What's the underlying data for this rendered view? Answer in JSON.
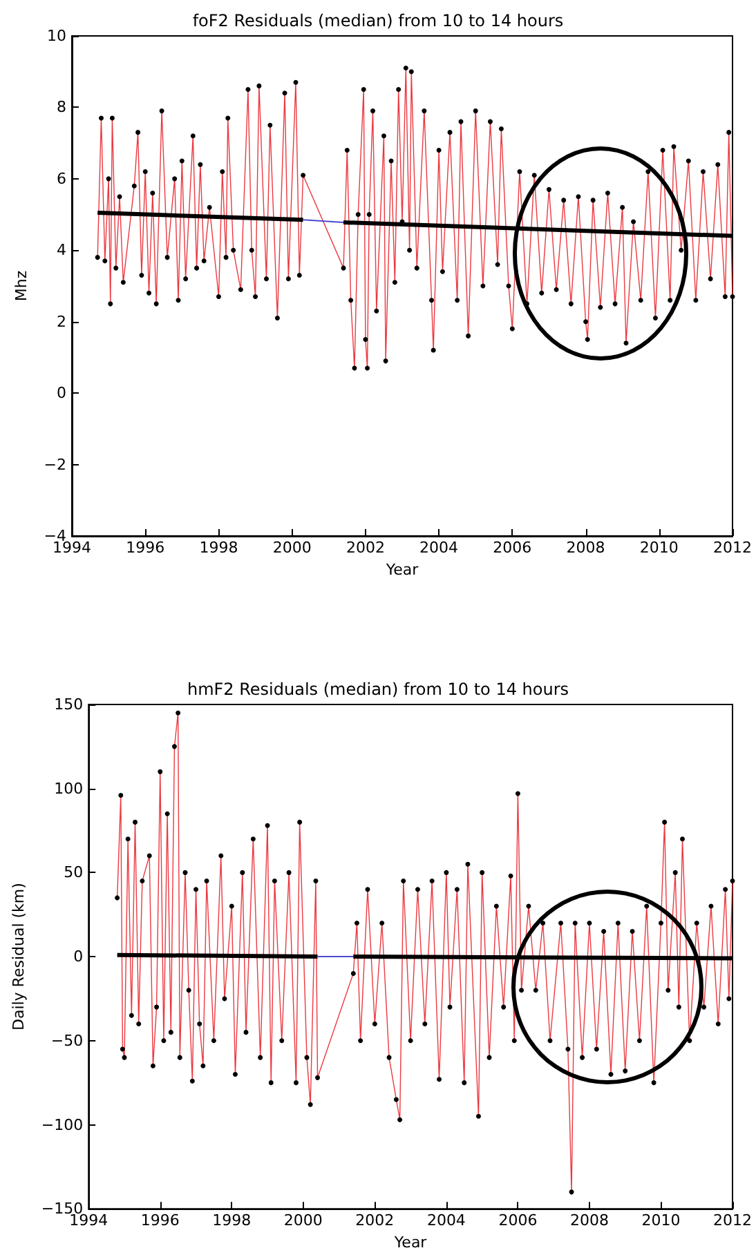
{
  "chart_data": [
    {
      "type": "line",
      "title": "foF2 Residuals (median) from 10 to 14 hours",
      "xlabel": "Year",
      "ylabel": "Mhz",
      "xlim": [
        1994,
        2012
      ],
      "xticks": [
        1994,
        1996,
        1998,
        2000,
        2002,
        2004,
        2006,
        2008,
        2010,
        2012
      ],
      "ylim": [
        -4,
        10
      ],
      "yticks": [
        -4,
        -2,
        0,
        2,
        4,
        6,
        8,
        10
      ],
      "marker": "circle",
      "grid": false,
      "series": [
        {
          "color": "#e8161e",
          "x": [
            1994.7,
            1994.8,
            1994.9,
            1995.0,
            1995.05,
            1995.1,
            1995.2,
            1995.3,
            1995.4,
            1995.7,
            1995.8,
            1995.9,
            1996.0,
            1996.1,
            1996.2,
            1996.3,
            1996.45,
            1996.6,
            1996.8,
            1996.9,
            1997.0,
            1997.1,
            1997.3,
            1997.4,
            1997.5,
            1997.6,
            1997.75,
            1998.0,
            1998.1,
            1998.2,
            1998.25,
            1998.4,
            1998.6,
            1998.8,
            1998.9,
            1999.0,
            1999.1,
            1999.3,
            1999.4,
            1999.6,
            1999.8,
            1999.9,
            2000.1,
            2000.2,
            2000.3,
            2001.4,
            2001.5,
            2001.6,
            2001.7,
            2001.8,
            2001.95,
            2002.0,
            2002.05,
            2002.1,
            2002.2,
            2002.3,
            2002.5,
            2002.55,
            2002.7,
            2002.8,
            2002.9,
            2003.0,
            2003.1,
            2003.2,
            2003.25,
            2003.4,
            2003.6,
            2003.8,
            2003.85,
            2004.0,
            2004.1,
            2004.3,
            2004.5,
            2004.6,
            2004.8,
            2005.0,
            2005.2,
            2005.4,
            2005.6,
            2005.7,
            2005.9,
            2006.0,
            2006.2,
            2006.4,
            2006.6,
            2006.8,
            2007.0,
            2007.2,
            2007.4,
            2007.6,
            2007.8,
            2008.0,
            2008.05,
            2008.2,
            2008.4,
            2008.6,
            2008.8,
            2009.0,
            2009.1,
            2009.3,
            2009.5,
            2009.7,
            2009.9,
            2010.1,
            2010.3,
            2010.4,
            2010.6,
            2010.8,
            2011.0,
            2011.2,
            2011.4,
            2011.6,
            2011.8,
            2011.9,
            2012.0
          ],
          "values": [
            3.8,
            7.7,
            3.7,
            6.0,
            2.5,
            7.7,
            3.5,
            5.5,
            3.1,
            5.8,
            7.3,
            3.3,
            6.2,
            2.8,
            5.6,
            2.5,
            7.9,
            3.8,
            6.0,
            2.6,
            6.5,
            3.2,
            7.2,
            3.5,
            6.4,
            3.7,
            5.2,
            2.7,
            6.2,
            3.8,
            7.7,
            4.0,
            2.9,
            8.5,
            4.0,
            2.7,
            8.6,
            3.2,
            7.5,
            2.1,
            8.4,
            3.2,
            8.7,
            3.3,
            6.1,
            3.5,
            6.8,
            2.6,
            0.7,
            5.0,
            8.5,
            1.5,
            0.7,
            5.0,
            7.9,
            2.3,
            7.2,
            0.9,
            6.5,
            3.1,
            8.5,
            4.8,
            9.1,
            4.0,
            9.0,
            3.5,
            7.9,
            2.6,
            1.2,
            6.8,
            3.4,
            7.3,
            2.6,
            7.6,
            1.6,
            7.9,
            3.0,
            7.6,
            3.6,
            7.4,
            3.0,
            1.8,
            6.2,
            2.5,
            6.1,
            2.8,
            5.7,
            2.9,
            5.4,
            2.5,
            5.5,
            2.0,
            1.5,
            5.4,
            2.4,
            5.6,
            2.5,
            5.2,
            1.4,
            4.8,
            2.6,
            6.2,
            2.1,
            6.8,
            2.6,
            6.9,
            4.0,
            6.5,
            2.6,
            6.2,
            3.2,
            6.4,
            2.7,
            7.3,
            2.7
          ]
        },
        {
          "type": "line",
          "color": "#000000",
          "marker": "none",
          "x": [
            1994.7,
            2000.3
          ],
          "values": [
            5.05,
            4.85
          ]
        },
        {
          "type": "line",
          "color": "#4a4ad0",
          "marker": "none",
          "x": [
            2000.3,
            2001.4
          ],
          "values": [
            4.85,
            4.78
          ]
        },
        {
          "type": "line",
          "color": "#000000",
          "marker": "none",
          "x": [
            2001.4,
            2012
          ],
          "values": [
            4.78,
            4.4
          ]
        }
      ]
    },
    {
      "type": "line",
      "title": "hmF2 Residuals (median) from 10 to 14 hours",
      "xlabel": "Year",
      "ylabel": "Daily Residual (km)",
      "xlim": [
        1994,
        2012
      ],
      "xticks": [
        1994,
        1996,
        1998,
        2000,
        2002,
        2004,
        2006,
        2008,
        2010,
        2012
      ],
      "ylim": [
        -150,
        150
      ],
      "yticks": [
        -150,
        -100,
        -50,
        0,
        50,
        100,
        150
      ],
      "marker": "circle",
      "grid": false,
      "series": [
        {
          "color": "#e8161e",
          "x": [
            1994.8,
            1994.9,
            1994.95,
            1995.0,
            1995.1,
            1995.2,
            1995.3,
            1995.4,
            1995.5,
            1995.7,
            1995.8,
            1995.9,
            1996.0,
            1996.1,
            1996.2,
            1996.3,
            1996.4,
            1996.5,
            1996.55,
            1996.7,
            1996.8,
            1996.9,
            1997.0,
            1997.1,
            1997.2,
            1997.3,
            1997.5,
            1997.7,
            1997.8,
            1998.0,
            1998.1,
            1998.3,
            1998.4,
            1998.6,
            1998.8,
            1999.0,
            1999.1,
            1999.2,
            1999.4,
            1999.6,
            1999.8,
            1999.9,
            2000.1,
            2000.2,
            2000.35,
            2000.4,
            2001.4,
            2001.5,
            2001.6,
            2001.8,
            2002.0,
            2002.2,
            2002.4,
            2002.6,
            2002.7,
            2002.8,
            2003.0,
            2003.2,
            2003.4,
            2003.6,
            2003.8,
            2004.0,
            2004.1,
            2004.3,
            2004.5,
            2004.6,
            2004.9,
            2005.0,
            2005.2,
            2005.4,
            2005.6,
            2005.8,
            2005.9,
            2006.0,
            2006.1,
            2006.3,
            2006.5,
            2006.7,
            2006.9,
            2007.2,
            2007.4,
            2007.5,
            2007.6,
            2007.8,
            2008.0,
            2008.2,
            2008.4,
            2008.6,
            2008.8,
            2009.0,
            2009.2,
            2009.4,
            2009.6,
            2009.8,
            2010.0,
            2010.1,
            2010.2,
            2010.4,
            2010.5,
            2010.6,
            2010.8,
            2011.0,
            2011.2,
            2011.4,
            2011.6,
            2011.8,
            2011.9,
            2012.0
          ],
          "values": [
            35,
            96,
            -55,
            -60,
            70,
            -35,
            80,
            -40,
            45,
            60,
            -65,
            -30,
            110,
            -50,
            85,
            -45,
            125,
            145,
            -60,
            50,
            -20,
            -74,
            40,
            -40,
            -65,
            45,
            -50,
            60,
            -25,
            30,
            -70,
            50,
            -45,
            70,
            -60,
            78,
            -75,
            45,
            -50,
            50,
            -75,
            80,
            -60,
            -88,
            45,
            -72,
            -10,
            20,
            -50,
            40,
            -40,
            20,
            -60,
            -85,
            -97,
            45,
            -50,
            40,
            -40,
            45,
            -73,
            50,
            -30,
            40,
            -75,
            55,
            -95,
            50,
            -60,
            30,
            -30,
            48,
            -50,
            97,
            -20,
            30,
            -20,
            20,
            -50,
            20,
            -55,
            -140,
            20,
            -60,
            20,
            -55,
            15,
            -70,
            20,
            -68,
            15,
            -50,
            30,
            -75,
            20,
            80,
            -20,
            50,
            -30,
            70,
            -50,
            20,
            -30,
            30,
            -40,
            40,
            -25,
            45
          ]
        },
        {
          "type": "line",
          "color": "#000000",
          "marker": "none",
          "x": [
            1994.8,
            2000.4
          ],
          "values": [
            1,
            0
          ]
        },
        {
          "type": "line",
          "color": "#4a4ad0",
          "marker": "none",
          "x": [
            2000.4,
            2001.4
          ],
          "values": [
            0,
            0
          ]
        },
        {
          "type": "line",
          "color": "#000000",
          "marker": "none",
          "x": [
            2001.4,
            2012
          ],
          "values": [
            0,
            -1
          ]
        }
      ]
    }
  ]
}
